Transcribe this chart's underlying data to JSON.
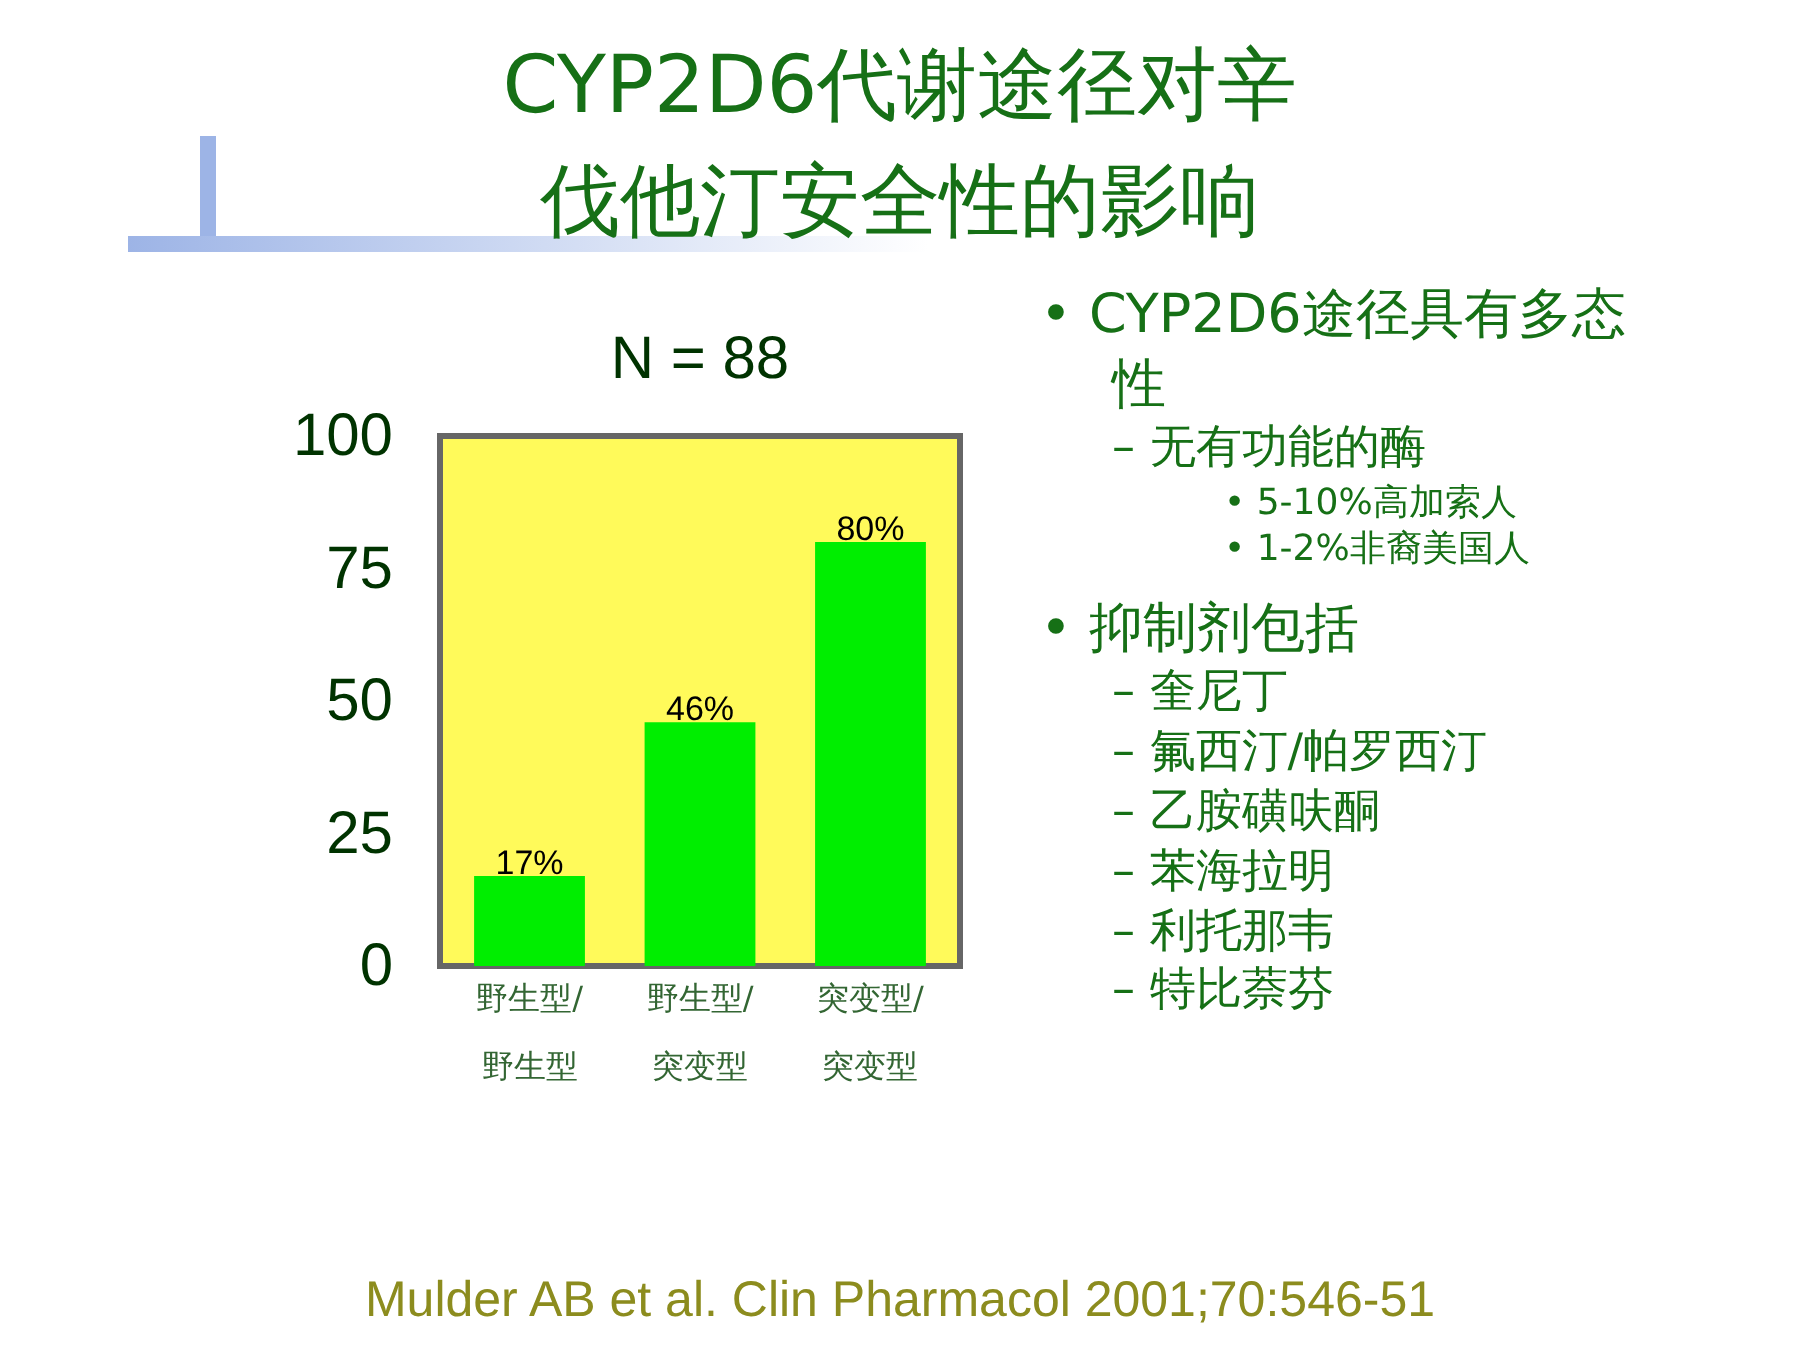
{
  "chart_data": {
    "type": "bar",
    "title": "CYP2D6代谢途径对辛伐他汀安全性的影响",
    "subtitle": "N = 88",
    "categories": [
      "野生型/\n野生型",
      "野生型/\n突变型",
      "突变型/\n突变型"
    ],
    "values": [
      17,
      46,
      80
    ],
    "color": "#00ee00",
    "value_labels": [
      "17%",
      "46%",
      "80%"
    ],
    "ylim": [
      0,
      100
    ],
    "yticks": [
      0,
      25,
      50,
      75,
      100
    ],
    "grid": false,
    "annotations": [
      "• CYP2D6途径具有多态性",
      "– 无有功能的酶",
      "• 5-10%高加索人",
      "• 1-2%非裔美国人",
      "• 抑制剂包括",
      "– 奎尼丁",
      "– 氟西汀/帕罗西汀",
      "– 乙胺磺呋酮",
      "– 苯海拉明",
      "– 利托那韦",
      "– 特比萘芬",
      "Mulder AB et al. Clin Pharmacol 2001;70:546-51"
    ]
  }
}
